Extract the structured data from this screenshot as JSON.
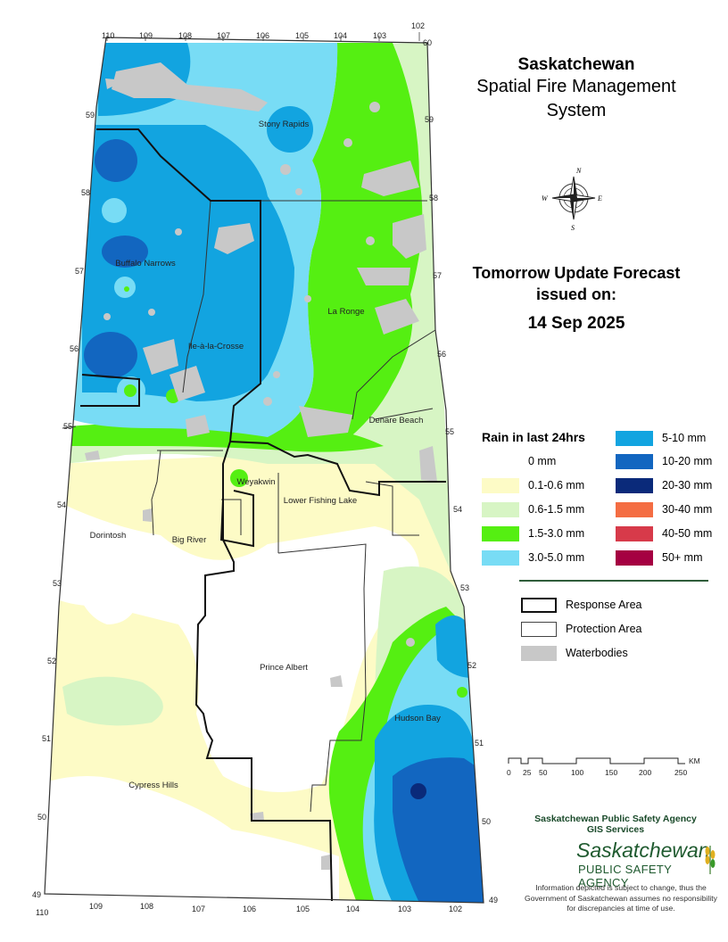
{
  "title": {
    "main": "Saskatchewan",
    "line2": "Spatial Fire Management",
    "line3": "System"
  },
  "forecast": {
    "line1": "Tomorrow Update Forecast",
    "line2": "issued on:",
    "date": "14 Sep 2025"
  },
  "legend": {
    "title": "Rain in last 24hrs",
    "classes": [
      {
        "label": "0 mm",
        "color": "#ffffff"
      },
      {
        "label": "0.1-0.6 mm",
        "color": "#fdfbc6"
      },
      {
        "label": "0.6-1.5 mm",
        "color": "#d7f5c4"
      },
      {
        "label": "1.5-3.0 mm",
        "color": "#55ef12"
      },
      {
        "label": "3.0-5.0 mm",
        "color": "#78dcf5"
      },
      {
        "label": "5-10 mm",
        "color": "#12a4e0"
      },
      {
        "label": "10-20 mm",
        "color": "#1266c0"
      },
      {
        "label": "20-30 mm",
        "color": "#0a2a7a"
      },
      {
        "label": "30-40 mm",
        "color": "#f46d43"
      },
      {
        "label": "40-50 mm",
        "color": "#d73a4a"
      },
      {
        "label": "50+ mm",
        "color": "#a50042"
      }
    ],
    "layers": [
      {
        "label": "Response Area",
        "style": "thick-outline"
      },
      {
        "label": "Protection Area",
        "style": "thin-outline"
      },
      {
        "label": "Waterbodies",
        "style": "grey-fill",
        "color": "#c8c8c8"
      }
    ]
  },
  "scale": {
    "labels": [
      "0",
      "25",
      "50",
      "100",
      "150",
      "200",
      "250"
    ],
    "unit": "KM"
  },
  "agency": {
    "line1": "Saskatchewan Public Safety Agency",
    "line2": "GIS  Services",
    "logo_word": "Saskatchewan",
    "logo_sub": "PUBLIC SAFETY AGENCY"
  },
  "disclaimer": "Information depicted is subject to change, thus the Government of Saskatchewan assumes no responsibility for discrepancies at time of use.",
  "compass": {
    "n": "N",
    "e": "E",
    "s": "S",
    "w": "W"
  },
  "graticule": {
    "top_longitudes": [
      "110",
      "109",
      "108",
      "107",
      "106",
      "105",
      "104",
      "103",
      "102"
    ],
    "bottom_longitudes": [
      "110",
      "109",
      "108",
      "107",
      "106",
      "105",
      "104",
      "103",
      "102"
    ],
    "latitudes_left": [
      "59",
      "58",
      "57",
      "56",
      "55",
      "54",
      "53",
      "52",
      "51",
      "50",
      "49"
    ],
    "latitudes_right": [
      "60",
      "59",
      "58",
      "57",
      "56",
      "55",
      "54",
      "53",
      "52",
      "51",
      "50",
      "49"
    ]
  },
  "places": [
    {
      "name": "Stony Rapids"
    },
    {
      "name": "Buffalo Narrows"
    },
    {
      "name": "La Ronge"
    },
    {
      "name": "Ile-à-la-Crosse"
    },
    {
      "name": "Denare Beach"
    },
    {
      "name": "Weyakwin"
    },
    {
      "name": "Lower Fishing Lake"
    },
    {
      "name": "Dorintosh"
    },
    {
      "name": "Big River"
    },
    {
      "name": "Prince Albert"
    },
    {
      "name": "Hudson Bay"
    },
    {
      "name": "Cypress Hills"
    }
  ]
}
